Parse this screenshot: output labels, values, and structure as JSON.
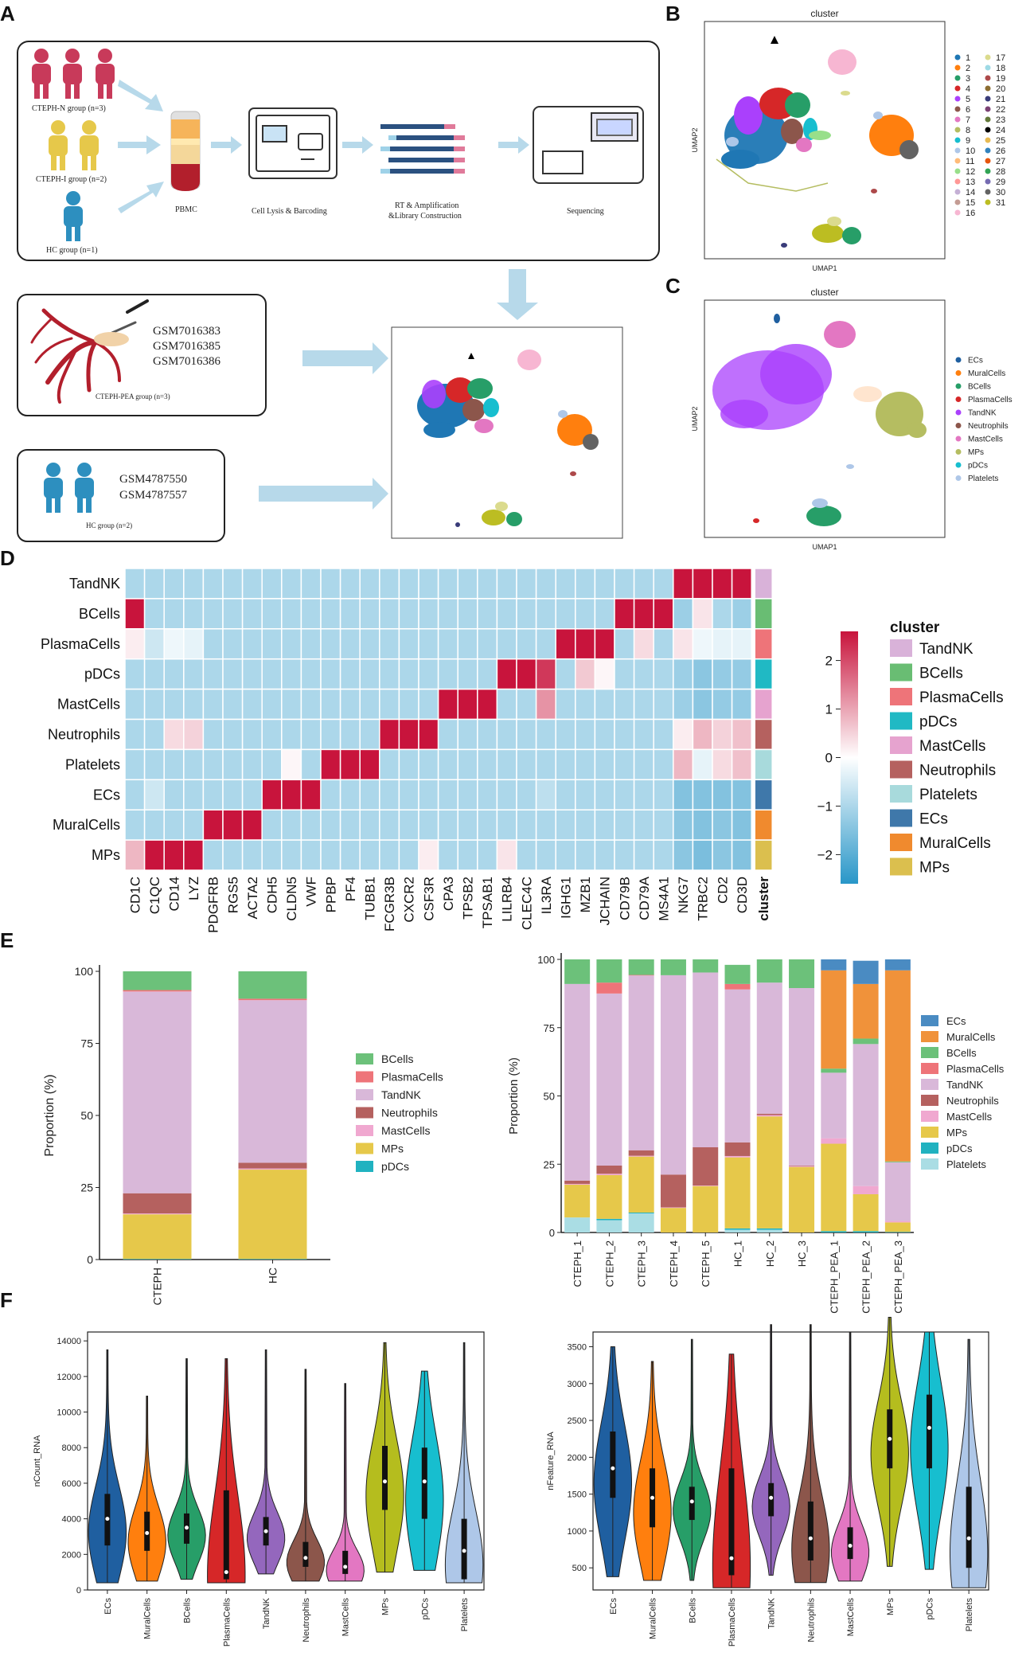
{
  "panel_letters": {
    "A": "A",
    "B": "B",
    "C": "C",
    "D": "D",
    "E": "E",
    "F": "F"
  },
  "panelA": {
    "group_cteph_n": "CTEPH-N group (n=3)",
    "group_cteph_i": "CTEPH-I group (n=2)",
    "group_hc1": "HC group (n=1)",
    "step_pbmc": "PBMC",
    "step_lysis": "Cell Lysis & Barcoding",
    "step_rt_1": "RT & Amplification",
    "step_rt_2": "&Library Construction",
    "step_seq": "Sequencing",
    "pea_accessions": [
      "GSM7016383",
      "GSM7016385",
      "GSM7016386"
    ],
    "pea_group": "CTEPH-PEA group (n=3)",
    "hc_accessions": [
      "GSM4787550",
      "GSM4787557"
    ],
    "hc_group": "HC group (n=2)",
    "colors": {
      "cteph_n": "#c83a5a",
      "cteph_i": "#e6c84a",
      "hc": "#2d8fbf",
      "arrow": "#b7d9ea"
    }
  },
  "panelB": {
    "title": "cluster",
    "xlabel": "UMAP1",
    "ylabel": "UMAP2",
    "legend": [
      "1",
      "2",
      "3",
      "4",
      "5",
      "6",
      "7",
      "8",
      "9",
      "10",
      "11",
      "12",
      "13",
      "14",
      "15",
      "16",
      "17",
      "18",
      "19",
      "20",
      "21",
      "22",
      "23",
      "24",
      "25",
      "26",
      "27",
      "28",
      "29",
      "30",
      "31"
    ],
    "legend_colors": [
      "#1f77b4",
      "#ff7f0e",
      "#279e68",
      "#d62728",
      "#aa40fc",
      "#8c564b",
      "#e377c2",
      "#b5bd61",
      "#17becf",
      "#aec7e8",
      "#ffbb78",
      "#98df8a",
      "#ff9896",
      "#c5b0d5",
      "#c49c94",
      "#f7b6d2",
      "#dbdb8d",
      "#9edae5",
      "#ad494a",
      "#8c6d31",
      "#393b79",
      "#7b4173",
      "#637939",
      "#000000",
      "#e7ba52",
      "#3182bd",
      "#e6550d",
      "#31a354",
      "#756bb1",
      "#636363",
      "#bcbd22"
    ]
  },
  "panelC": {
    "title": "cluster",
    "xlabel": "UMAP1",
    "ylabel": "UMAP2",
    "legend": [
      "ECs",
      "MuralCells",
      "BCells",
      "PlasmaCells",
      "TandNK",
      "Neutrophils",
      "MastCells",
      "MPs",
      "pDCs",
      "Platelets"
    ],
    "legend_colors": [
      "#1f5fa0",
      "#ff7f0e",
      "#279e68",
      "#d62728",
      "#aa40fc",
      "#8c564b",
      "#e377c2",
      "#b5bd61",
      "#17becf",
      "#aec7e8"
    ]
  },
  "chart_data": [
    {
      "type": "heatmap",
      "panel": "D",
      "rows": [
        "TandNK",
        "BCells",
        "PlasmaCells",
        "pDCs",
        "MastCells",
        "Neutrophils",
        "Platelets",
        "ECs",
        "MuralCells",
        "MPs"
      ],
      "columns": [
        "CD1C",
        "C1QC",
        "CD14",
        "LYZ",
        "PDGFRB",
        "RGS5",
        "ACTA2",
        "CDH5",
        "CLDN5",
        "VWF",
        "PPBP",
        "PF4",
        "TUBB1",
        "FCGR3B",
        "CXCR2",
        "CSF3R",
        "CPA3",
        "TPSB2",
        "TPSAB1",
        "LILRB4",
        "CLEC4C",
        "IL3RA",
        "IGHG1",
        "MZB1",
        "JCHAIN",
        "CD79B",
        "CD79A",
        "MS4A1",
        "NKG7",
        "TRBC2",
        "CD2",
        "CD3D"
      ],
      "values": [
        [
          -1,
          -1,
          -1,
          -1,
          -1,
          -1,
          -1,
          -1,
          -1,
          -1,
          -1,
          -1,
          -1,
          -1,
          -1,
          -1,
          -1,
          -1,
          -1,
          -1,
          -1,
          -1,
          -1,
          -1,
          -1,
          -1,
          -1,
          -1,
          2.6,
          2.6,
          2.6,
          2.6
        ],
        [
          2.6,
          -1,
          -1,
          -1,
          -1,
          -1,
          -1,
          -1,
          -1,
          -1,
          -1,
          -1,
          -1,
          -1,
          -1,
          -1,
          -1,
          -1,
          -1,
          -1,
          -1,
          -1,
          -1,
          -1,
          -1,
          2.6,
          2.6,
          2.6,
          -1.2,
          0.3,
          -1.0,
          -1.2
        ],
        [
          0.2,
          -0.6,
          -0.2,
          -0.3,
          -1,
          -1,
          -1,
          -1,
          -1,
          -1,
          -1,
          -1,
          -1,
          -1,
          -1,
          -1,
          -1,
          -1,
          -1,
          -1,
          -1,
          -1,
          2.6,
          2.6,
          2.6,
          -1,
          0.4,
          -1,
          0.3,
          -0.2,
          -0.3,
          -0.3
        ],
        [
          -1,
          -1,
          -1,
          -1,
          -1,
          -1,
          -1,
          -1,
          -1,
          -1,
          -1,
          -1,
          -1,
          -1,
          -1,
          -1,
          -1,
          -1,
          -1,
          2.6,
          2.6,
          2.2,
          -1,
          0.6,
          0.1,
          -1,
          -1,
          -1,
          -1.2,
          -1.4,
          -1.3,
          -1.3
        ],
        [
          -1,
          -1,
          -1,
          -1,
          -1,
          -1,
          -1,
          -1,
          -1,
          -1,
          -1,
          -1,
          -1,
          -1,
          -1,
          -1,
          2.6,
          2.6,
          2.6,
          -1,
          -1,
          1.2,
          -1,
          -1,
          -1,
          -1,
          -1,
          -1,
          -1.2,
          -1.4,
          -1.3,
          -1.3
        ],
        [
          -1,
          -1,
          0.4,
          0.5,
          -1,
          -1,
          -1,
          -1,
          -1,
          -1,
          -1,
          -1,
          -1,
          2.6,
          2.6,
          2.6,
          -1,
          -1,
          -1,
          -1,
          -1,
          -1,
          -1,
          -1,
          -1,
          -1,
          -1,
          -1,
          0.2,
          0.8,
          0.5,
          0.7
        ],
        [
          -1,
          -1,
          -1,
          -1,
          -1,
          -1,
          -1,
          -1,
          0.1,
          -1,
          2.6,
          2.6,
          2.6,
          -1,
          -1,
          -1,
          -1,
          -1,
          -1,
          -1,
          -1,
          -1,
          -1,
          -1,
          -1,
          -1,
          -1,
          -1,
          0.8,
          -0.3,
          0.4,
          0.7
        ],
        [
          -1,
          -0.6,
          -1,
          -1,
          -1,
          -1,
          -1,
          2.6,
          2.6,
          2.6,
          -1,
          -1,
          -1,
          -1,
          -1,
          -1,
          -1,
          -1,
          -1,
          -1,
          -1,
          -0.8,
          -1,
          -1,
          -1,
          -1,
          -1,
          -1,
          -1.5,
          -1.5,
          -1.5,
          -1.5
        ],
        [
          -1,
          -1,
          -1,
          -1,
          2.6,
          2.6,
          2.6,
          -1,
          -1,
          -1,
          -1,
          -1,
          -1,
          -1,
          -1,
          -1,
          -1,
          -1,
          -1,
          -1,
          -1,
          -1,
          -1,
          -1,
          -1,
          -1,
          -1,
          -1,
          -1.4,
          -1.5,
          -1.4,
          -1.5
        ],
        [
          0.8,
          2.6,
          2.6,
          2.6,
          -1,
          -1,
          -1,
          -1,
          -1,
          -1,
          -1,
          -1,
          -1,
          -1,
          -1,
          0.2,
          -1,
          -1,
          -1,
          0.3,
          -1,
          -1,
          -1,
          -1,
          -1,
          -1,
          -1,
          -1,
          -1.4,
          -1.6,
          -1.4,
          -1.5
        ]
      ],
      "extra_column_label": "cluster",
      "extra_column_colors": [
        "#d9b2d9",
        "#69bd73",
        "#ee7479",
        "#20b9c4",
        "#e6a3cf",
        "#b5615f",
        "#a8dadc",
        "#3f78aa",
        "#f08a2e",
        "#dbbf4e"
      ],
      "colorbar": {
        "ticks": [
          2,
          1,
          0,
          -1,
          -2
        ],
        "range": [
          -2.6,
          2.6
        ]
      },
      "legend_title": "cluster",
      "legend": [
        "TandNK",
        "BCells",
        "PlasmaCells",
        "pDCs",
        "MastCells",
        "Neutrophils",
        "Platelets",
        "ECs",
        "MuralCells",
        "MPs"
      ]
    },
    {
      "type": "bar",
      "panel": "E-left",
      "stacked": true,
      "categories": [
        "CTEPH",
        "HC"
      ],
      "ylabel": "Proportion (%)",
      "ylim": [
        0,
        100
      ],
      "yticks": [
        0,
        25,
        50,
        75,
        100
      ],
      "series": [
        {
          "name": "pDCs",
          "color": "#20b2c0",
          "values": [
            0.2,
            0.2
          ]
        },
        {
          "name": "MPs",
          "color": "#e6c84a",
          "values": [
            15.5,
            31
          ]
        },
        {
          "name": "MastCells",
          "color": "#f0a8d0",
          "values": [
            0.3,
            0.4
          ]
        },
        {
          "name": "Neutrophils",
          "color": "#b5615f",
          "values": [
            7,
            2
          ]
        },
        {
          "name": "TandNK",
          "color": "#d9b8d9",
          "values": [
            70,
            56.4
          ]
        },
        {
          "name": "PlasmaCells",
          "color": "#ee7479",
          "values": [
            0.5,
            0.5
          ]
        },
        {
          "name": "BCells",
          "color": "#6cc17a",
          "values": [
            6.5,
            9.5
          ]
        }
      ],
      "legend": [
        "BCells",
        "PlasmaCells",
        "TandNK",
        "Neutrophils",
        "MastCells",
        "MPs",
        "pDCs"
      ]
    },
    {
      "type": "bar",
      "panel": "E-right",
      "stacked": true,
      "categories": [
        "CTEPH_1",
        "CTEPH_2",
        "CTEPH_3",
        "CTEPH_4",
        "CTEPH_5",
        "HC_1",
        "HC_2",
        "HC_3",
        "CTEPH_PEA_1",
        "CTEPH_PEA_2",
        "CTEPH_PEA_3"
      ],
      "ylabel": "Proportion (%)",
      "ylim": [
        0,
        100
      ],
      "yticks": [
        0,
        25,
        50,
        75,
        100
      ],
      "series": [
        {
          "name": "Platelets",
          "color": "#aadde4",
          "values": [
            5.5,
            4.5,
            7,
            0,
            0,
            1,
            1,
            0,
            0,
            0,
            0
          ]
        },
        {
          "name": "pDCs",
          "color": "#20b2c0",
          "values": [
            0,
            0.5,
            0.3,
            0,
            0,
            0.5,
            0.5,
            0,
            0.5,
            0.5,
            0.2
          ]
        },
        {
          "name": "MPs",
          "color": "#e6c84a",
          "values": [
            12,
            16,
            20.5,
            9,
            17,
            26,
            41,
            24,
            32,
            13.5,
            3.5
          ]
        },
        {
          "name": "MastCells",
          "color": "#f0a8d0",
          "values": [
            0.3,
            0.5,
            0.3,
            0.2,
            0.2,
            0.5,
            0.5,
            0.3,
            2,
            3,
            0.5
          ]
        },
        {
          "name": "Neutrophils",
          "color": "#b5615f",
          "values": [
            1.2,
            3,
            2,
            12,
            14,
            5,
            0.5,
            0.2,
            0,
            0,
            0
          ]
        },
        {
          "name": "TandNK",
          "color": "#d9b8d9",
          "values": [
            72,
            63,
            64,
            73,
            64,
            56,
            48,
            65,
            24,
            52,
            21.5
          ]
        },
        {
          "name": "PlasmaCells",
          "color": "#ee7479",
          "values": [
            0,
            4,
            0.2,
            0,
            0,
            2,
            0,
            0,
            0,
            0,
            0
          ]
        },
        {
          "name": "BCells",
          "color": "#6cc17a",
          "values": [
            9,
            8.5,
            5.7,
            5.8,
            4.8,
            7,
            8.5,
            10.5,
            1.5,
            2,
            0.3
          ]
        },
        {
          "name": "MuralCells",
          "color": "#f0923a",
          "values": [
            0,
            0,
            0,
            0,
            0,
            0,
            0,
            0,
            36,
            20,
            70
          ]
        },
        {
          "name": "ECs",
          "color": "#4a8bc2",
          "values": [
            0,
            0,
            0,
            0,
            0,
            0,
            0,
            0,
            4,
            8.5,
            4
          ]
        }
      ],
      "legend": [
        "ECs",
        "MuralCells",
        "BCells",
        "PlasmaCells",
        "TandNK",
        "Neutrophils",
        "MastCells",
        "MPs",
        "pDCs",
        "Platelets"
      ]
    },
    {
      "type": "violin",
      "panel": "F-left",
      "ylabel": "nCount_RNA",
      "ylim": [
        0,
        14500
      ],
      "yticks": [
        0,
        2000,
        4000,
        6000,
        8000,
        10000,
        12000,
        14000
      ],
      "categories": [
        "ECs",
        "MuralCells",
        "BCells",
        "PlasmaCells",
        "TandNK",
        "Neutrophils",
        "MastCells",
        "MPs",
        "pDCs",
        "Platelets"
      ],
      "colors": [
        "#1f5fa0",
        "#ff7f0e",
        "#279e68",
        "#d62728",
        "#9467bd",
        "#8c564b",
        "#e377c2",
        "#b5bd1e",
        "#17becf",
        "#aec7e8"
      ],
      "min": [
        400,
        500,
        600,
        400,
        900,
        500,
        500,
        1000,
        1100,
        400
      ],
      "max": [
        13500,
        10900,
        13000,
        13000,
        13500,
        12400,
        11600,
        13900,
        12300,
        13900
      ],
      "q1": [
        2500,
        2200,
        2600,
        600,
        2500,
        1300,
        900,
        4500,
        4000,
        600
      ],
      "median": [
        4000,
        3200,
        3500,
        1000,
        3300,
        1800,
        1300,
        6100,
        6100,
        2200
      ],
      "q3": [
        5400,
        4400,
        4300,
        5600,
        4100,
        2700,
        2200,
        8100,
        8000,
        4000
      ]
    },
    {
      "type": "violin",
      "panel": "F-right",
      "ylabel": "nFeature_RNA",
      "ylim": [
        200,
        3700
      ],
      "yticks": [
        500,
        1000,
        1500,
        2000,
        2500,
        3000,
        3500
      ],
      "categories": [
        "ECs",
        "MuralCells",
        "BCells",
        "PlasmaCells",
        "TandNK",
        "Neutrophils",
        "MastCells",
        "MPs",
        "pDCs",
        "Platelets"
      ],
      "colors": [
        "#1f5fa0",
        "#ff7f0e",
        "#279e68",
        "#d62728",
        "#9467bd",
        "#8c564b",
        "#e377c2",
        "#b5bd1e",
        "#17becf",
        "#aec7e8"
      ],
      "min": [
        380,
        330,
        330,
        230,
        400,
        300,
        320,
        520,
        480,
        230
      ],
      "max": [
        3500,
        3300,
        3600,
        3400,
        3800,
        3800,
        3700,
        3900,
        3700,
        3600
      ],
      "q1": [
        1450,
        1050,
        1150,
        400,
        1200,
        600,
        620,
        1850,
        1850,
        500
      ],
      "median": [
        1850,
        1450,
        1400,
        630,
        1450,
        900,
        800,
        2250,
        2400,
        900
      ],
      "q3": [
        2350,
        1850,
        1600,
        1850,
        1650,
        1400,
        1050,
        2650,
        2850,
        1600
      ]
    }
  ]
}
